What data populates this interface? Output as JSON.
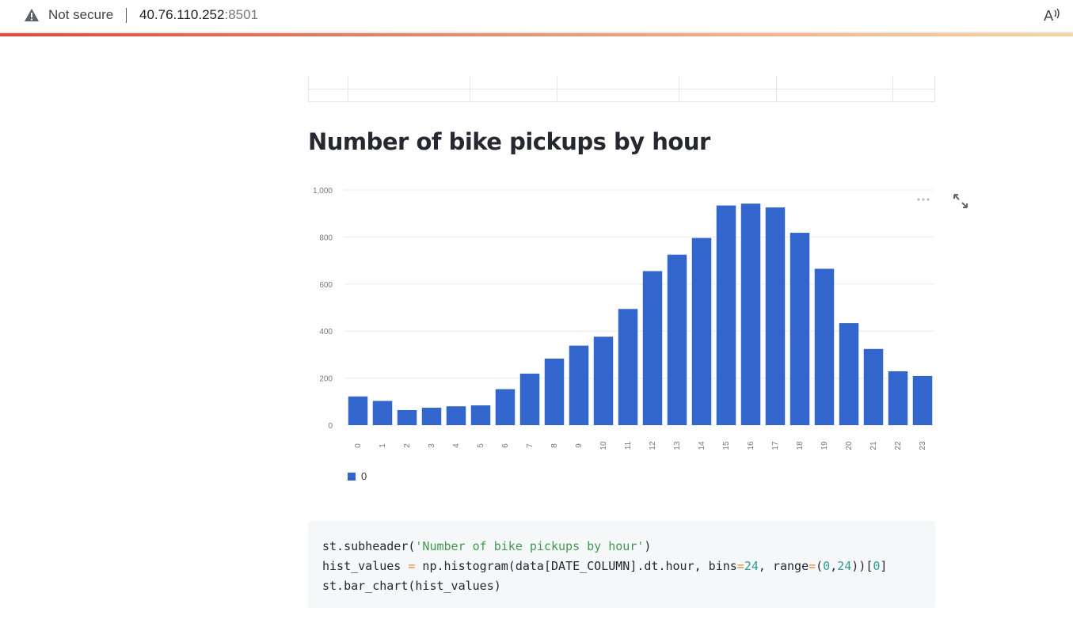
{
  "browser": {
    "security_label": "Not secure",
    "url_host": "40.76.110.252",
    "url_port": ":8501",
    "icons": [
      "warning-icon",
      "read-aloud-icon"
    ]
  },
  "main": {
    "subheader": "Number of bike pickups by hour",
    "chart_icons": [
      "more-options-icon",
      "fullscreen-icon"
    ],
    "code_lines": [
      "st.subheader('Number of bike pickups by hour')",
      "hist_values = np.histogram(data[DATE_COLUMN].dt.hour, bins=24, range=(0,24))[0]",
      "st.bar_chart(hist_values)"
    ]
  },
  "chart_data": {
    "type": "bar",
    "categories": [
      "0",
      "1",
      "2",
      "3",
      "4",
      "5",
      "6",
      "7",
      "8",
      "9",
      "10",
      "11",
      "12",
      "13",
      "14",
      "15",
      "16",
      "17",
      "18",
      "19",
      "20",
      "21",
      "22",
      "23"
    ],
    "series": [
      {
        "name": "0",
        "values": [
          122,
          103,
          64,
          74,
          80,
          84,
          153,
          219,
          283,
          338,
          376,
          494,
          655,
          725,
          796,
          934,
          942,
          926,
          818,
          665,
          434,
          324,
          229,
          209
        ],
        "color": "#3366cc"
      }
    ],
    "yticks": [
      "0",
      "200",
      "400",
      "600",
      "800",
      "1,000"
    ],
    "ylim": [
      0,
      1000
    ],
    "grid": true,
    "legend": "bottom-left"
  }
}
